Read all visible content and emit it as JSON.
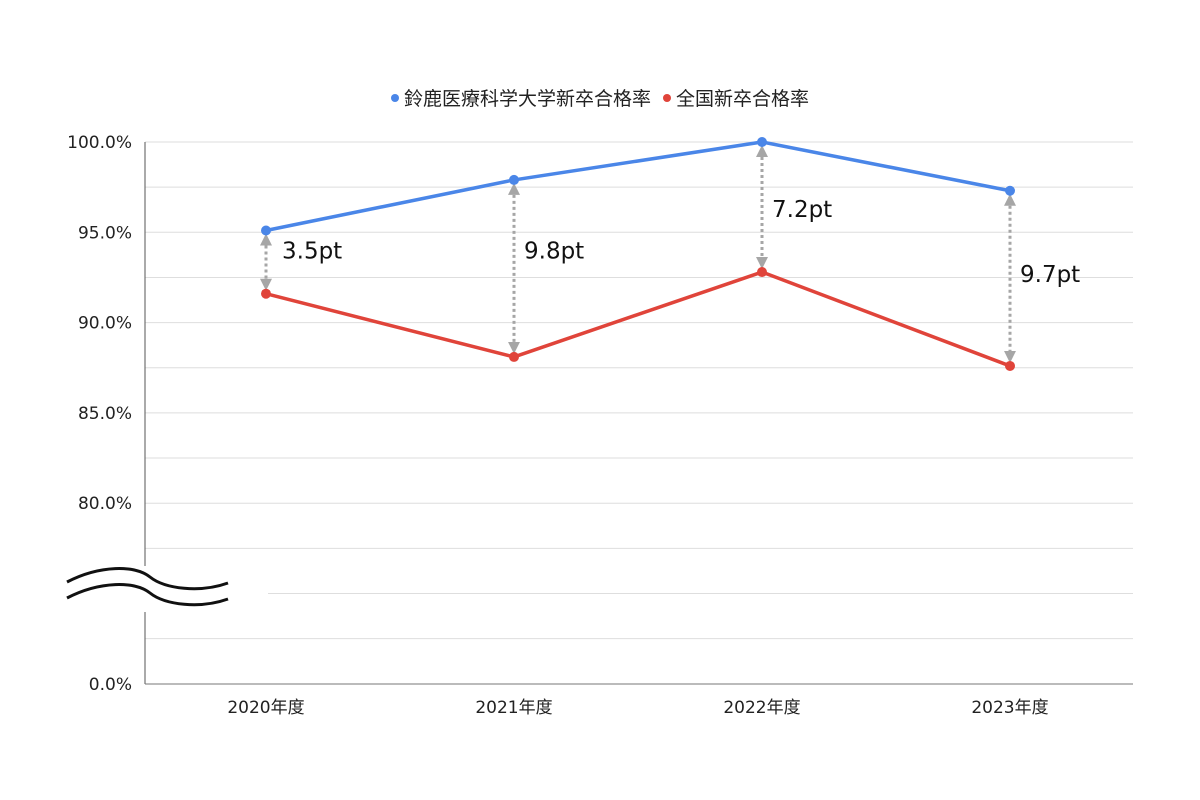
{
  "chart_data": {
    "type": "line",
    "categories": [
      "2020年度",
      "2021年度",
      "2022年度",
      "2023年度"
    ],
    "series": [
      {
        "name": "鈴鹿医療科学大学新卒合格率",
        "color": "#4a86e8",
        "values": [
          95.1,
          97.9,
          100.0,
          97.3
        ]
      },
      {
        "name": "全国新卒合格率",
        "color": "#e0443a",
        "values": [
          91.6,
          88.1,
          92.8,
          87.6
        ]
      }
    ],
    "y_ticks": [
      "100.0%",
      "95.0%",
      "90.0%",
      "85.0%",
      "80.0%",
      "0.0%"
    ],
    "y_tick_values": [
      100,
      95,
      90,
      85,
      80,
      0
    ],
    "ylim": [
      75,
      100
    ],
    "axis_break": true,
    "annotations": [
      "3.5pt",
      "9.8pt",
      "7.2pt",
      "9.7pt"
    ],
    "legend_position": "top-center",
    "grid": true
  }
}
